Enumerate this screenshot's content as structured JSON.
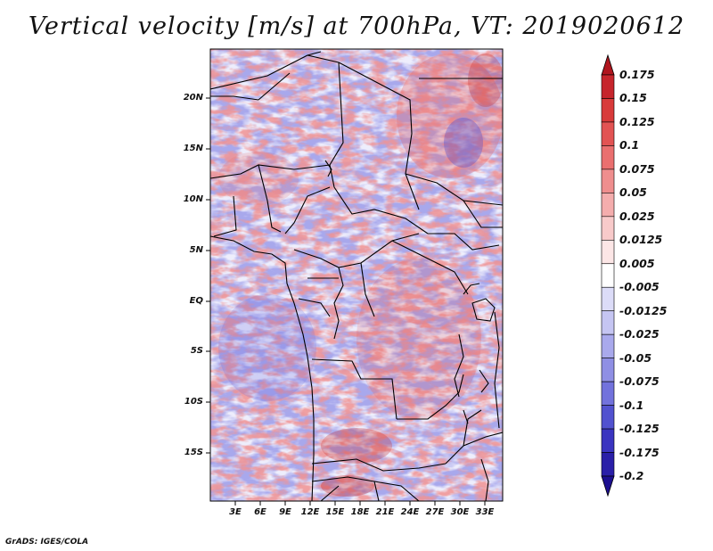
{
  "title": "Vertical velocity [m/s] at 700hPa, VT: 2019020612",
  "credit": "GrADS: IGES/COLA",
  "map": {
    "region": "Central Africa",
    "field": "vertical velocity",
    "level": "700hPa",
    "lat_labels": [
      "20N",
      "15N",
      "10N",
      "5N",
      "EQ",
      "5S",
      "10S",
      "15S"
    ],
    "lon_labels": [
      "3E",
      "6E",
      "9E",
      "12E",
      "15E",
      "18E",
      "21E",
      "24E",
      "27E",
      "30E",
      "33E"
    ]
  },
  "colorbar": {
    "levels": [
      "0.175",
      "0.15",
      "0.125",
      "0.1",
      "0.075",
      "0.05",
      "0.025",
      "0.0125",
      "0.005",
      "-0.005",
      "-0.0125",
      "-0.025",
      "-0.05",
      "-0.075",
      "-0.1",
      "-0.125",
      "-0.175",
      "-0.2"
    ],
    "colors": [
      "#b0151e",
      "#c6252c",
      "#d83a3a",
      "#e25353",
      "#ea6f6f",
      "#ef8e8e",
      "#f4adad",
      "#f8caca",
      "#fce6e6",
      "#ffffff",
      "#dcdcf8",
      "#c5c5f2",
      "#a9a9ec",
      "#8f8fe4",
      "#7272dc",
      "#5252cf",
      "#3a34c0",
      "#2a1fa8",
      "#1c0f90"
    ]
  }
}
